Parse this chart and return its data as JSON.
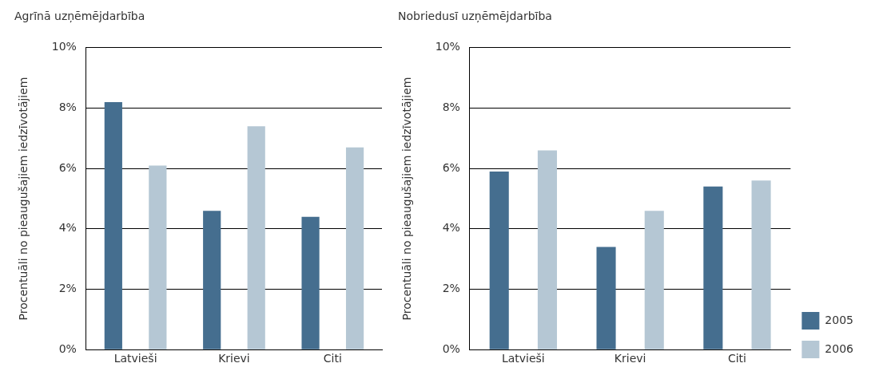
{
  "chart_data": [
    {
      "type": "bar",
      "title": "Agrīnā uzņēmējdarbība",
      "ylabel": "Procentuāli no pieaugušajiem iedzīvotājiem",
      "categories": [
        "Latvieši",
        "Krievi",
        "Citi"
      ],
      "series": [
        {
          "color": "#456e8f",
          "values": [
            8.2,
            4.6,
            4.4
          ]
        },
        {
          "color": "#b5c7d4",
          "values": [
            6.1,
            7.4,
            6.7
          ]
        }
      ],
      "ylim": [
        0,
        10
      ],
      "yticks": [
        {
          "value": 0,
          "label": "0%"
        },
        {
          "value": 2,
          "label": "2%"
        },
        {
          "value": 4,
          "label": "4%"
        },
        {
          "value": 6,
          "label": "6%"
        },
        {
          "value": 8,
          "label": "8%"
        },
        {
          "value": 10,
          "label": "10%"
        }
      ],
      "grid": "y",
      "legend": false
    },
    {
      "type": "bar",
      "title": "Nobriedusī uzņēmējdarbība",
      "ylabel": "Procentuāli no pieaugušajiem iedzīvotājiem",
      "categories": [
        "Latvieši",
        "Krievi",
        "Citi"
      ],
      "series": [
        {
          "name": "2005",
          "color": "#456e8f",
          "values": [
            5.9,
            3.4,
            5.4
          ]
        },
        {
          "name": "2006",
          "color": "#b5c7d4",
          "values": [
            6.6,
            4.6,
            5.6
          ]
        }
      ],
      "ylim": [
        0,
        10
      ],
      "yticks": [
        {
          "value": 0,
          "label": "0%"
        },
        {
          "value": 2,
          "label": "2%"
        },
        {
          "value": 4,
          "label": "4%"
        },
        {
          "value": 6,
          "label": "6%"
        },
        {
          "value": 8,
          "label": "8%"
        },
        {
          "value": 10,
          "label": "10%"
        }
      ],
      "grid": "y",
      "legend": "bottom right"
    }
  ]
}
